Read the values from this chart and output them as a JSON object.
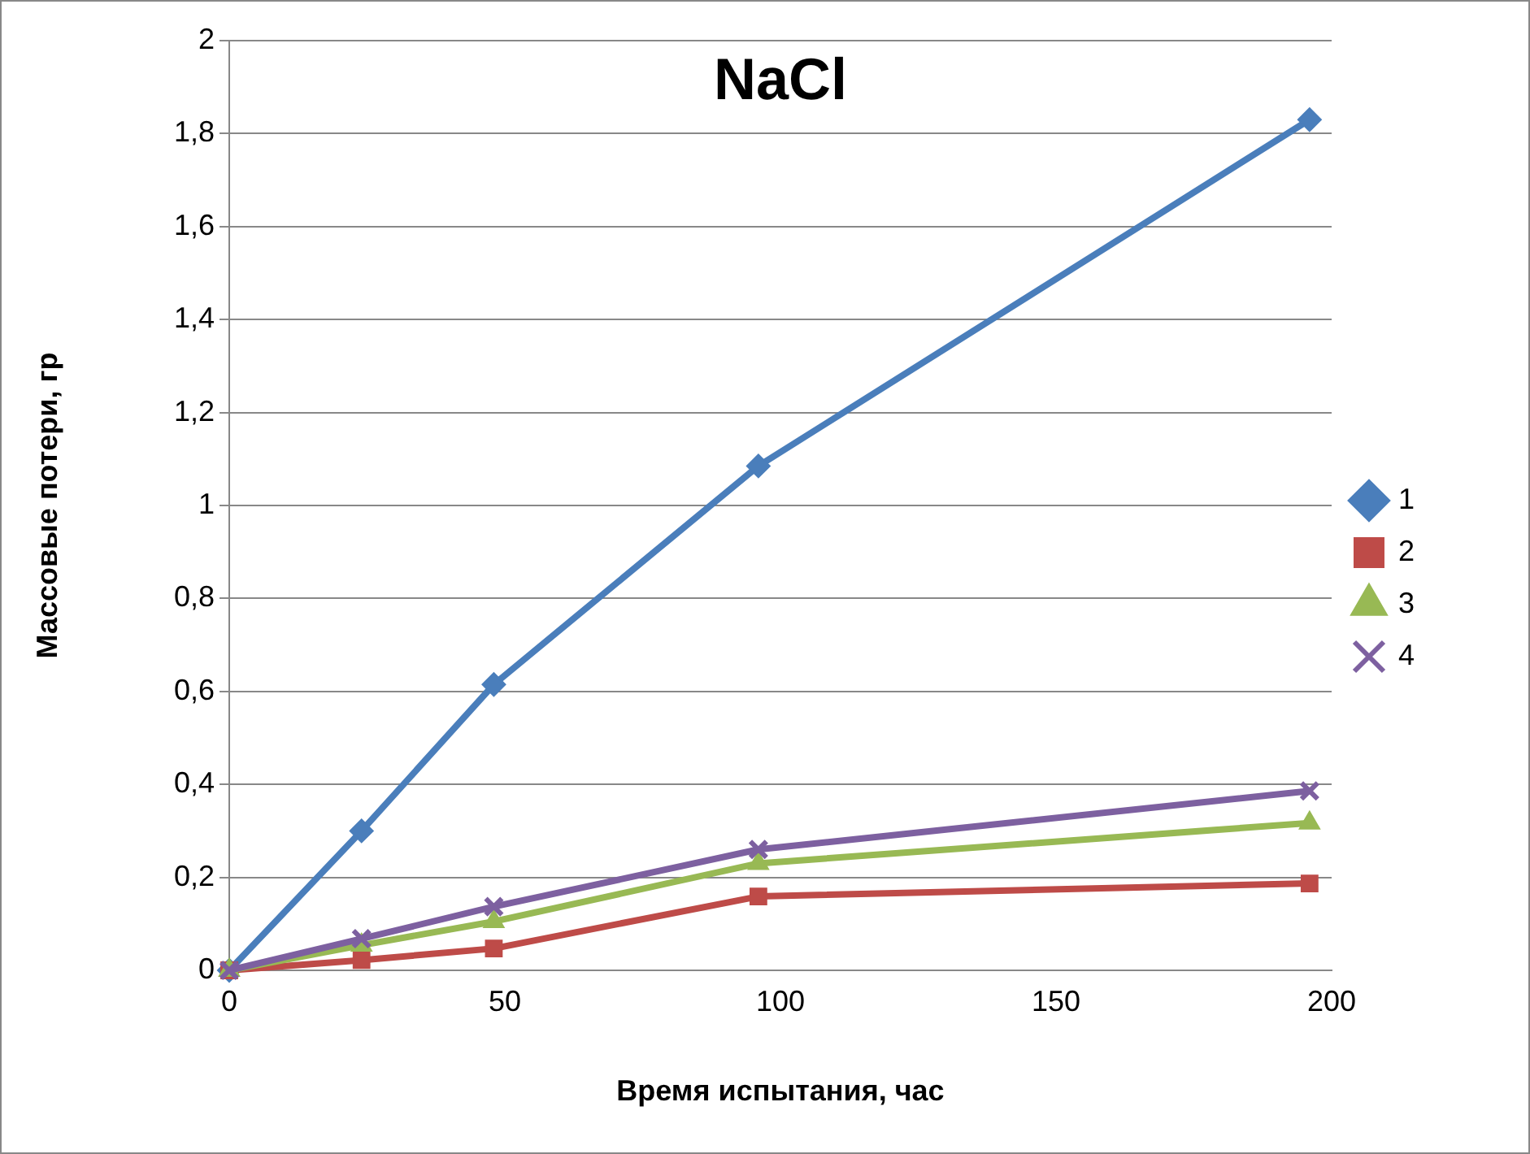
{
  "chart_data": {
    "type": "line",
    "title": "NaCl",
    "xlabel": "Время испытания, час",
    "ylabel": "Массовые потери, гр",
    "x": [
      0,
      24,
      48,
      96,
      196
    ],
    "series": [
      {
        "name": "1",
        "color": "#4a7ebb",
        "marker": "diamond",
        "values": [
          0,
          0.3,
          0.615,
          1.085,
          1.83
        ]
      },
      {
        "name": "2",
        "color": "#be4b48",
        "marker": "square",
        "values": [
          0,
          0.022,
          0.047,
          0.159,
          0.187
        ]
      },
      {
        "name": "3",
        "color": "#98b954",
        "marker": "triangle",
        "values": [
          0,
          0.054,
          0.105,
          0.23,
          0.317
        ]
      },
      {
        "name": "4",
        "color": "#7d60a0",
        "marker": "cross",
        "values": [
          0,
          0.068,
          0.137,
          0.26,
          0.386
        ]
      }
    ],
    "xlim": [
      0,
      200
    ],
    "xticks": [
      0,
      50,
      100,
      150,
      200
    ],
    "ylim": [
      0,
      2
    ],
    "yticks": [
      0,
      {
        "value": 0.2,
        "label": "0,2"
      },
      {
        "value": 0.4,
        "label": "0,4"
      },
      {
        "value": 0.6,
        "label": "0,6"
      },
      {
        "value": 0.8,
        "label": "0,8"
      },
      1,
      {
        "value": 1.2,
        "label": "1,2"
      },
      {
        "value": 1.4,
        "label": "1,4"
      },
      {
        "value": 1.6,
        "label": "1,6"
      },
      {
        "value": 1.8,
        "label": "1,8"
      },
      2
    ],
    "grid": "y",
    "legend": "right",
    "line_style": "solid"
  }
}
